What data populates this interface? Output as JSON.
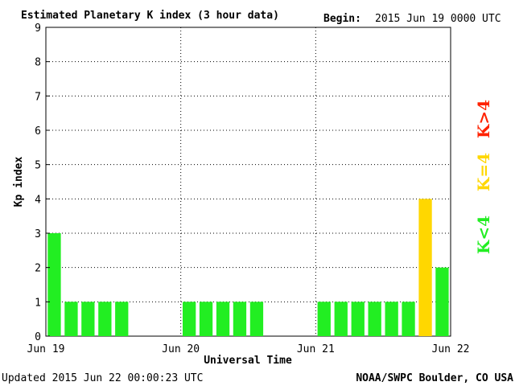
{
  "header": {
    "title": "Estimated Planetary K index (3 hour data)",
    "begin_label": "Begin:",
    "begin_value": "2015 Jun 19 0000 UTC"
  },
  "footer": {
    "updated": "Updated 2015 Jun 22 00:00:23 UTC",
    "source": "NOAA/SWPC Boulder, CO USA"
  },
  "legend": {
    "below": "K<4",
    "equal": "K=4",
    "above": "K>4"
  },
  "colors": {
    "below": "#22ee22",
    "equal": "#ffd700",
    "above": "#ff2200",
    "grid": "#000000"
  },
  "chart_data": {
    "type": "bar",
    "xlabel": "Universal Time",
    "ylabel": "Kp index",
    "ylim": [
      0,
      9
    ],
    "yticks": [
      "0",
      "1",
      "2",
      "3",
      "4",
      "5",
      "6",
      "7",
      "8",
      "9"
    ],
    "xticks": [
      "Jun 19",
      "Jun 20",
      "Jun 21",
      "Jun 22"
    ],
    "grid": true,
    "values": [
      3,
      1,
      1,
      1,
      1,
      null,
      null,
      null,
      1,
      1,
      1,
      1,
      1,
      null,
      null,
      null,
      1,
      1,
      1,
      1,
      1,
      1,
      4,
      2
    ]
  }
}
